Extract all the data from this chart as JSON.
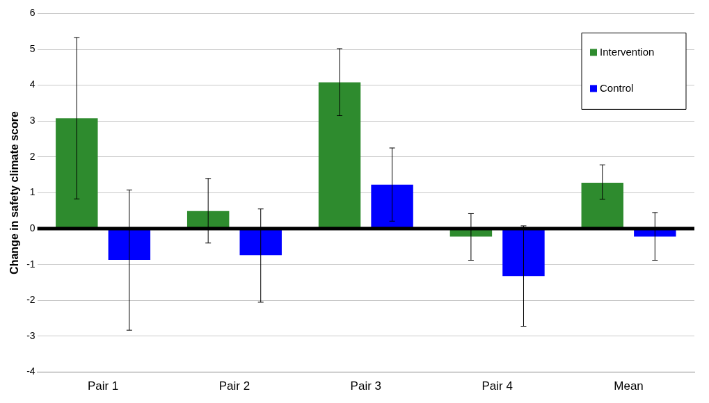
{
  "chart_data": {
    "type": "bar",
    "ylabel": "Change in safety climate score",
    "categories": [
      "Pair 1",
      "Pair 2",
      "Pair 3",
      "Pair 4",
      "Mean"
    ],
    "series": [
      {
        "name": "Intervention",
        "color": "#2e8b2e",
        "values": [
          3.08,
          0.49,
          4.08,
          -0.22,
          1.28
        ],
        "errors": [
          [
            0.83,
            5.33
          ],
          [
            -0.4,
            1.4
          ],
          [
            3.15,
            5.02
          ],
          [
            -0.88,
            0.42
          ],
          [
            0.82,
            1.78
          ]
        ]
      },
      {
        "name": "Control",
        "color": "#0000ff",
        "values": [
          -0.87,
          -0.74,
          1.23,
          -1.32,
          -0.22
        ],
        "errors": [
          [
            -2.83,
            1.08
          ],
          [
            -2.05,
            0.55
          ],
          [
            0.21,
            2.25
          ],
          [
            -2.72,
            0.08
          ],
          [
            -0.88,
            0.45
          ]
        ]
      }
    ],
    "ylim": [
      -4,
      6
    ],
    "yticks": [
      -4,
      -3,
      -2,
      -1,
      0,
      1,
      2,
      3,
      4,
      5,
      6
    ],
    "grid": "y",
    "legend": "top right",
    "ref_lines": [
      {
        "axis": "y",
        "value": 0,
        "color": "#000000"
      }
    ]
  }
}
